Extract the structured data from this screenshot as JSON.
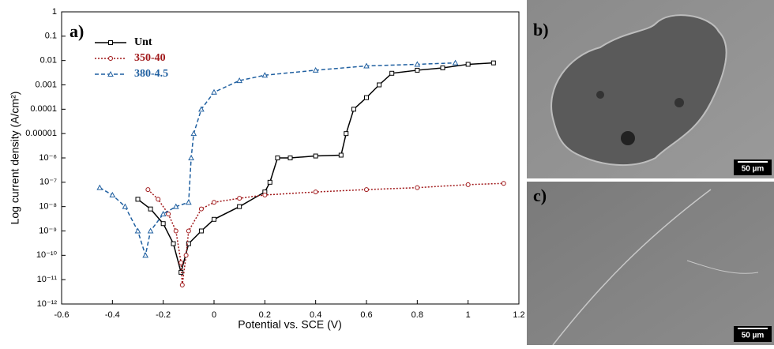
{
  "chart_data": {
    "type": "line",
    "annotation": "a)",
    "x_label": "Potential vs. SCE (V)",
    "y_label": "Log current density (A/cm²)",
    "log_y": true,
    "xlim": [
      -0.6,
      1.2
    ],
    "xticks": [
      -0.6,
      -0.4,
      -0.2,
      0,
      0.2,
      0.4,
      0.6,
      0.8,
      1,
      1.2
    ],
    "ylim": [
      1e-12,
      1
    ],
    "yticks": [
      1,
      0.1,
      0.01,
      0.001,
      0.0001,
      1e-05,
      {
        "value": 1e-06,
        "label": "10⁻⁶"
      },
      {
        "value": 1e-07,
        "label": "10⁻⁷"
      },
      {
        "value": 1e-08,
        "label": "10⁻⁸"
      },
      {
        "value": 1e-09,
        "label": "10⁻⁹"
      },
      {
        "value": 1e-10,
        "label": "10⁻¹⁰"
      },
      {
        "value": 1e-11,
        "label": "10⁻¹¹"
      },
      {
        "value": 1e-12,
        "label": "10⁻¹²"
      }
    ],
    "legend": "upper left",
    "series": [
      {
        "name": "Unt",
        "color": "#000000",
        "marker": "square",
        "dash": "none",
        "x": [
          -0.3,
          -0.25,
          -0.2,
          -0.16,
          -0.13,
          -0.1,
          -0.05,
          0,
          0.1,
          0.2,
          0.22,
          0.25,
          0.3,
          0.4,
          0.5,
          0.52,
          0.55,
          0.6,
          0.65,
          0.7,
          0.8,
          0.9,
          1.0,
          1.1
        ],
        "values": [
          2e-08,
          8e-09,
          2e-09,
          3e-10,
          2e-11,
          3e-10,
          1e-09,
          3e-09,
          1e-08,
          4e-08,
          1e-07,
          1e-06,
          1e-06,
          1.2e-06,
          1.3e-06,
          1e-05,
          0.0001,
          0.0003,
          0.001,
          0.003,
          0.004,
          0.005,
          0.007,
          0.008
        ]
      },
      {
        "name": "350-40",
        "color": "#a0181a",
        "marker": "circle",
        "dash": "2,2",
        "x": [
          -0.26,
          -0.22,
          -0.18,
          -0.15,
          -0.13,
          -0.125,
          -0.11,
          -0.1,
          -0.05,
          0,
          0.1,
          0.2,
          0.4,
          0.6,
          0.8,
          1.0,
          1.14
        ],
        "values": [
          5e-08,
          2e-08,
          5e-09,
          1e-09,
          5e-11,
          6e-12,
          1e-10,
          1e-09,
          8e-09,
          1.5e-08,
          2.2e-08,
          3e-08,
          4e-08,
          5e-08,
          6e-08,
          8e-08,
          9e-08
        ]
      },
      {
        "name": "380-4.5",
        "color": "#1f5fa0",
        "marker": "triangle",
        "dash": "5,3",
        "x": [
          -0.45,
          -0.4,
          -0.35,
          -0.3,
          -0.27,
          -0.25,
          -0.2,
          -0.15,
          -0.1,
          -0.09,
          -0.08,
          -0.05,
          0,
          0.1,
          0.2,
          0.4,
          0.6,
          0.8,
          0.95
        ],
        "values": [
          6e-08,
          3e-08,
          1e-08,
          1e-09,
          1e-10,
          1e-09,
          5e-09,
          1e-08,
          1.5e-08,
          1e-06,
          1e-05,
          0.0001,
          0.0005,
          0.0015,
          0.0025,
          0.004,
          0.006,
          0.007,
          0.008
        ]
      }
    ]
  },
  "panels": [
    {
      "label": "b)",
      "scale": "50 µm"
    },
    {
      "label": "c)",
      "scale": "50 µm"
    }
  ]
}
